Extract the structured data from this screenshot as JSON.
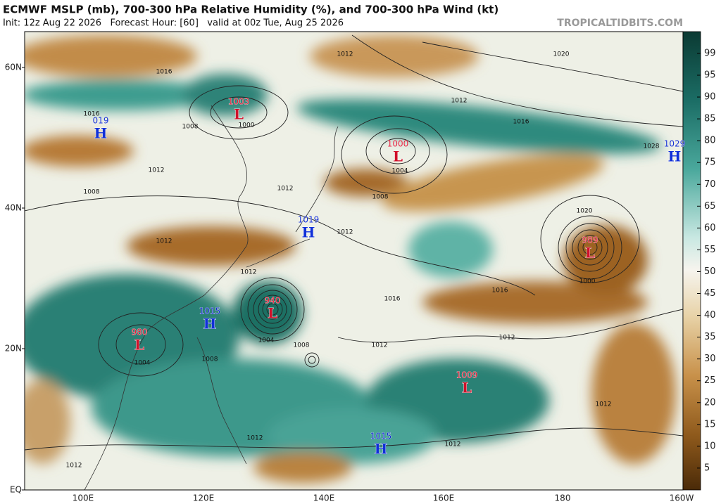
{
  "header": {
    "title": "ECMWF MSLP (mb), 700-300 hPa Relative Humidity (%), and 700-300 hPa Wind (kt)",
    "subtitle": "Init: 12z Aug 22 2026   Forecast Hour: [60]   valid at 00z Tue, Aug 25 2026",
    "watermark": "TROPICALTIDBITS.COM"
  },
  "map": {
    "lat_labels": [
      "60N",
      "40N",
      "20N",
      "EQ"
    ],
    "lon_labels": [
      "100E",
      "120E",
      "140E",
      "160E",
      "180",
      "160W"
    ],
    "centers": [
      {
        "letter": "H",
        "pressure": "019"
      },
      {
        "letter": "L",
        "pressure": "1003"
      },
      {
        "letter": "L",
        "pressure": "1000"
      },
      {
        "letter": "H",
        "pressure": "1029"
      },
      {
        "letter": "H",
        "pressure": "1019"
      },
      {
        "letter": "L",
        "pressure": "989"
      },
      {
        "letter": "H",
        "pressure": "1015"
      },
      {
        "letter": "L",
        "pressure": "940"
      },
      {
        "letter": "L",
        "pressure": "980"
      },
      {
        "letter": "L",
        "pressure": "1009"
      },
      {
        "letter": "H",
        "pressure": "1015"
      }
    ],
    "isobar_labels": [
      "1012",
      "1004",
      "1000",
      "1016",
      "1008",
      "1012",
      "1012",
      "1016",
      "1004",
      "1012",
      "1020",
      "1028",
      "1008",
      "1012",
      "1016",
      "1020",
      "1016",
      "1012",
      "1004",
      "1008",
      "1012",
      "1016",
      "1012",
      "1008",
      "1012",
      "1012",
      "1012",
      "1012",
      "1012",
      "1000",
      "1008"
    ]
  },
  "colorbar": {
    "labels": [
      "99",
      "95",
      "90",
      "85",
      "80",
      "75",
      "70",
      "65",
      "60",
      "55",
      "50",
      "45",
      "40",
      "35",
      "30",
      "25",
      "20",
      "15",
      "10",
      "5"
    ]
  }
}
